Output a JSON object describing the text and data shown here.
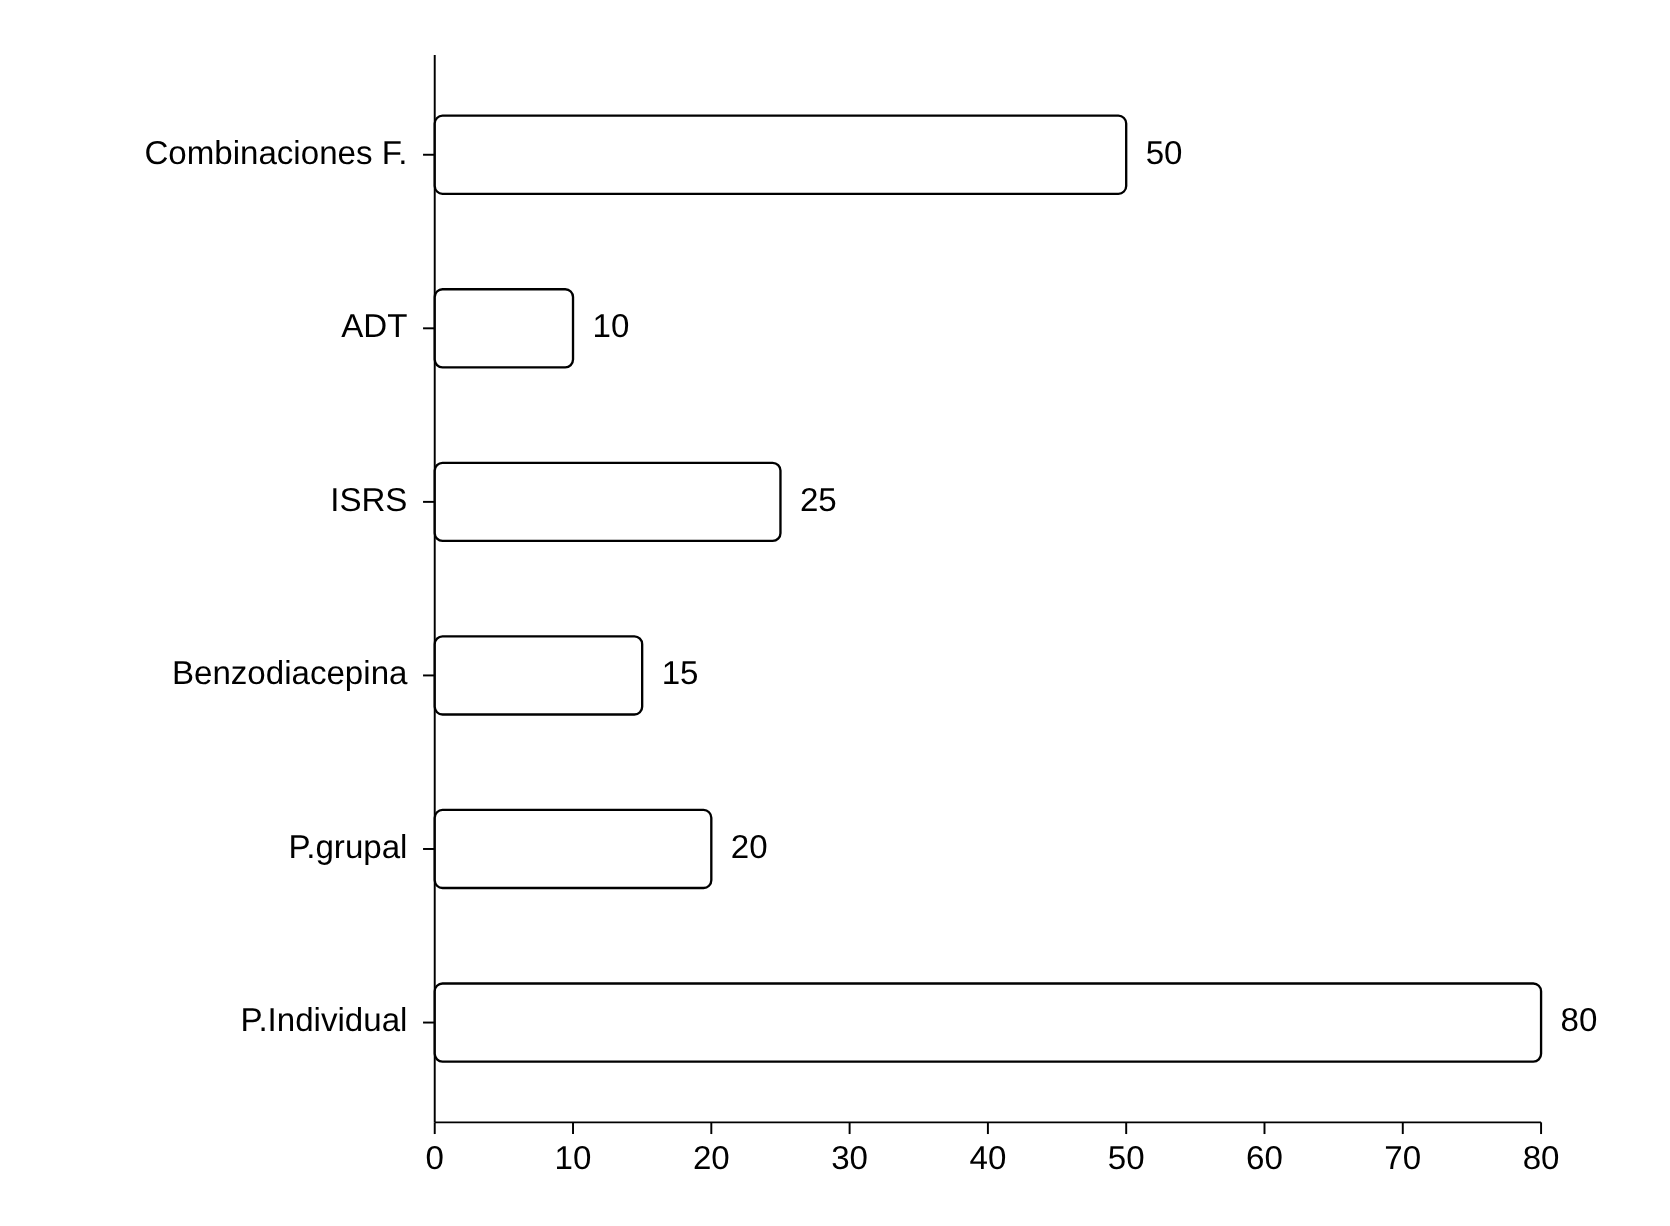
{
  "chart_data": {
    "type": "bar",
    "orientation": "horizontal",
    "categories": [
      "Combinaciones F.",
      "ADT",
      "ISRS",
      "Benzodiacepina",
      "P.grupal",
      "P.Individual"
    ],
    "values": [
      50,
      10,
      25,
      15,
      20,
      80
    ],
    "color": "#ffffff",
    "xlim": [
      0,
      80
    ],
    "xticks": [
      0,
      10,
      20,
      30,
      40,
      50,
      60,
      70,
      80
    ],
    "data_labels": true,
    "grid": false
  }
}
